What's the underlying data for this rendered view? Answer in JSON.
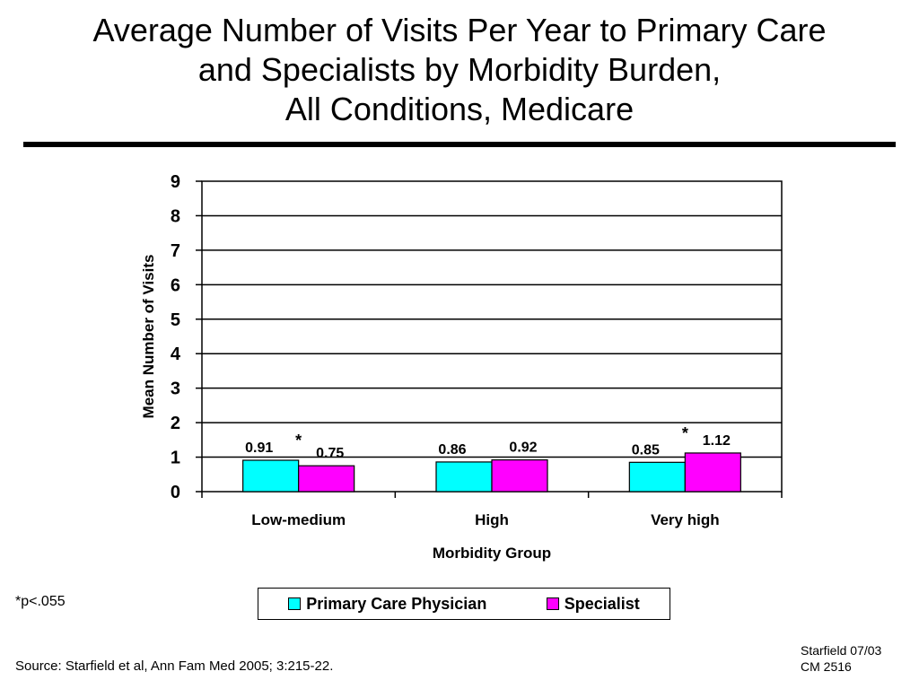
{
  "title_lines": [
    "Average Number of Visits Per Year to Primary Care",
    "and Specialists by Morbidity Burden,",
    "All Conditions, Medicare"
  ],
  "footnote": "*p<.055",
  "source": "Source: Starfield et al, Ann Fam Med 2005; 3:215-22.",
  "stamp_lines": [
    "Starfield 07/03",
    "CM 2516"
  ],
  "chart_data": {
    "type": "bar",
    "categories": [
      "Low-medium",
      "High",
      "Very high"
    ],
    "series": [
      {
        "name": "Primary Care Physician",
        "values": [
          0.91,
          0.86,
          0.85
        ],
        "labels": [
          "0.91",
          "0.86",
          "0.85"
        ],
        "color": "#00FFFF"
      },
      {
        "name": "Specialist",
        "values": [
          0.75,
          0.92,
          1.12
        ],
        "labels": [
          "0.75",
          "0.92",
          "1.12"
        ],
        "color": "#FF00FF"
      }
    ],
    "significance": [
      "*",
      "",
      "*"
    ],
    "xlabel": "Morbidity Group",
    "ylabel": "Mean Number of Visits",
    "ylim": [
      0,
      9
    ],
    "yticks": [
      "0",
      "1",
      "2",
      "3",
      "4",
      "5",
      "6",
      "7",
      "8",
      "9"
    ],
    "grid": true,
    "legend_position": "bottom"
  }
}
